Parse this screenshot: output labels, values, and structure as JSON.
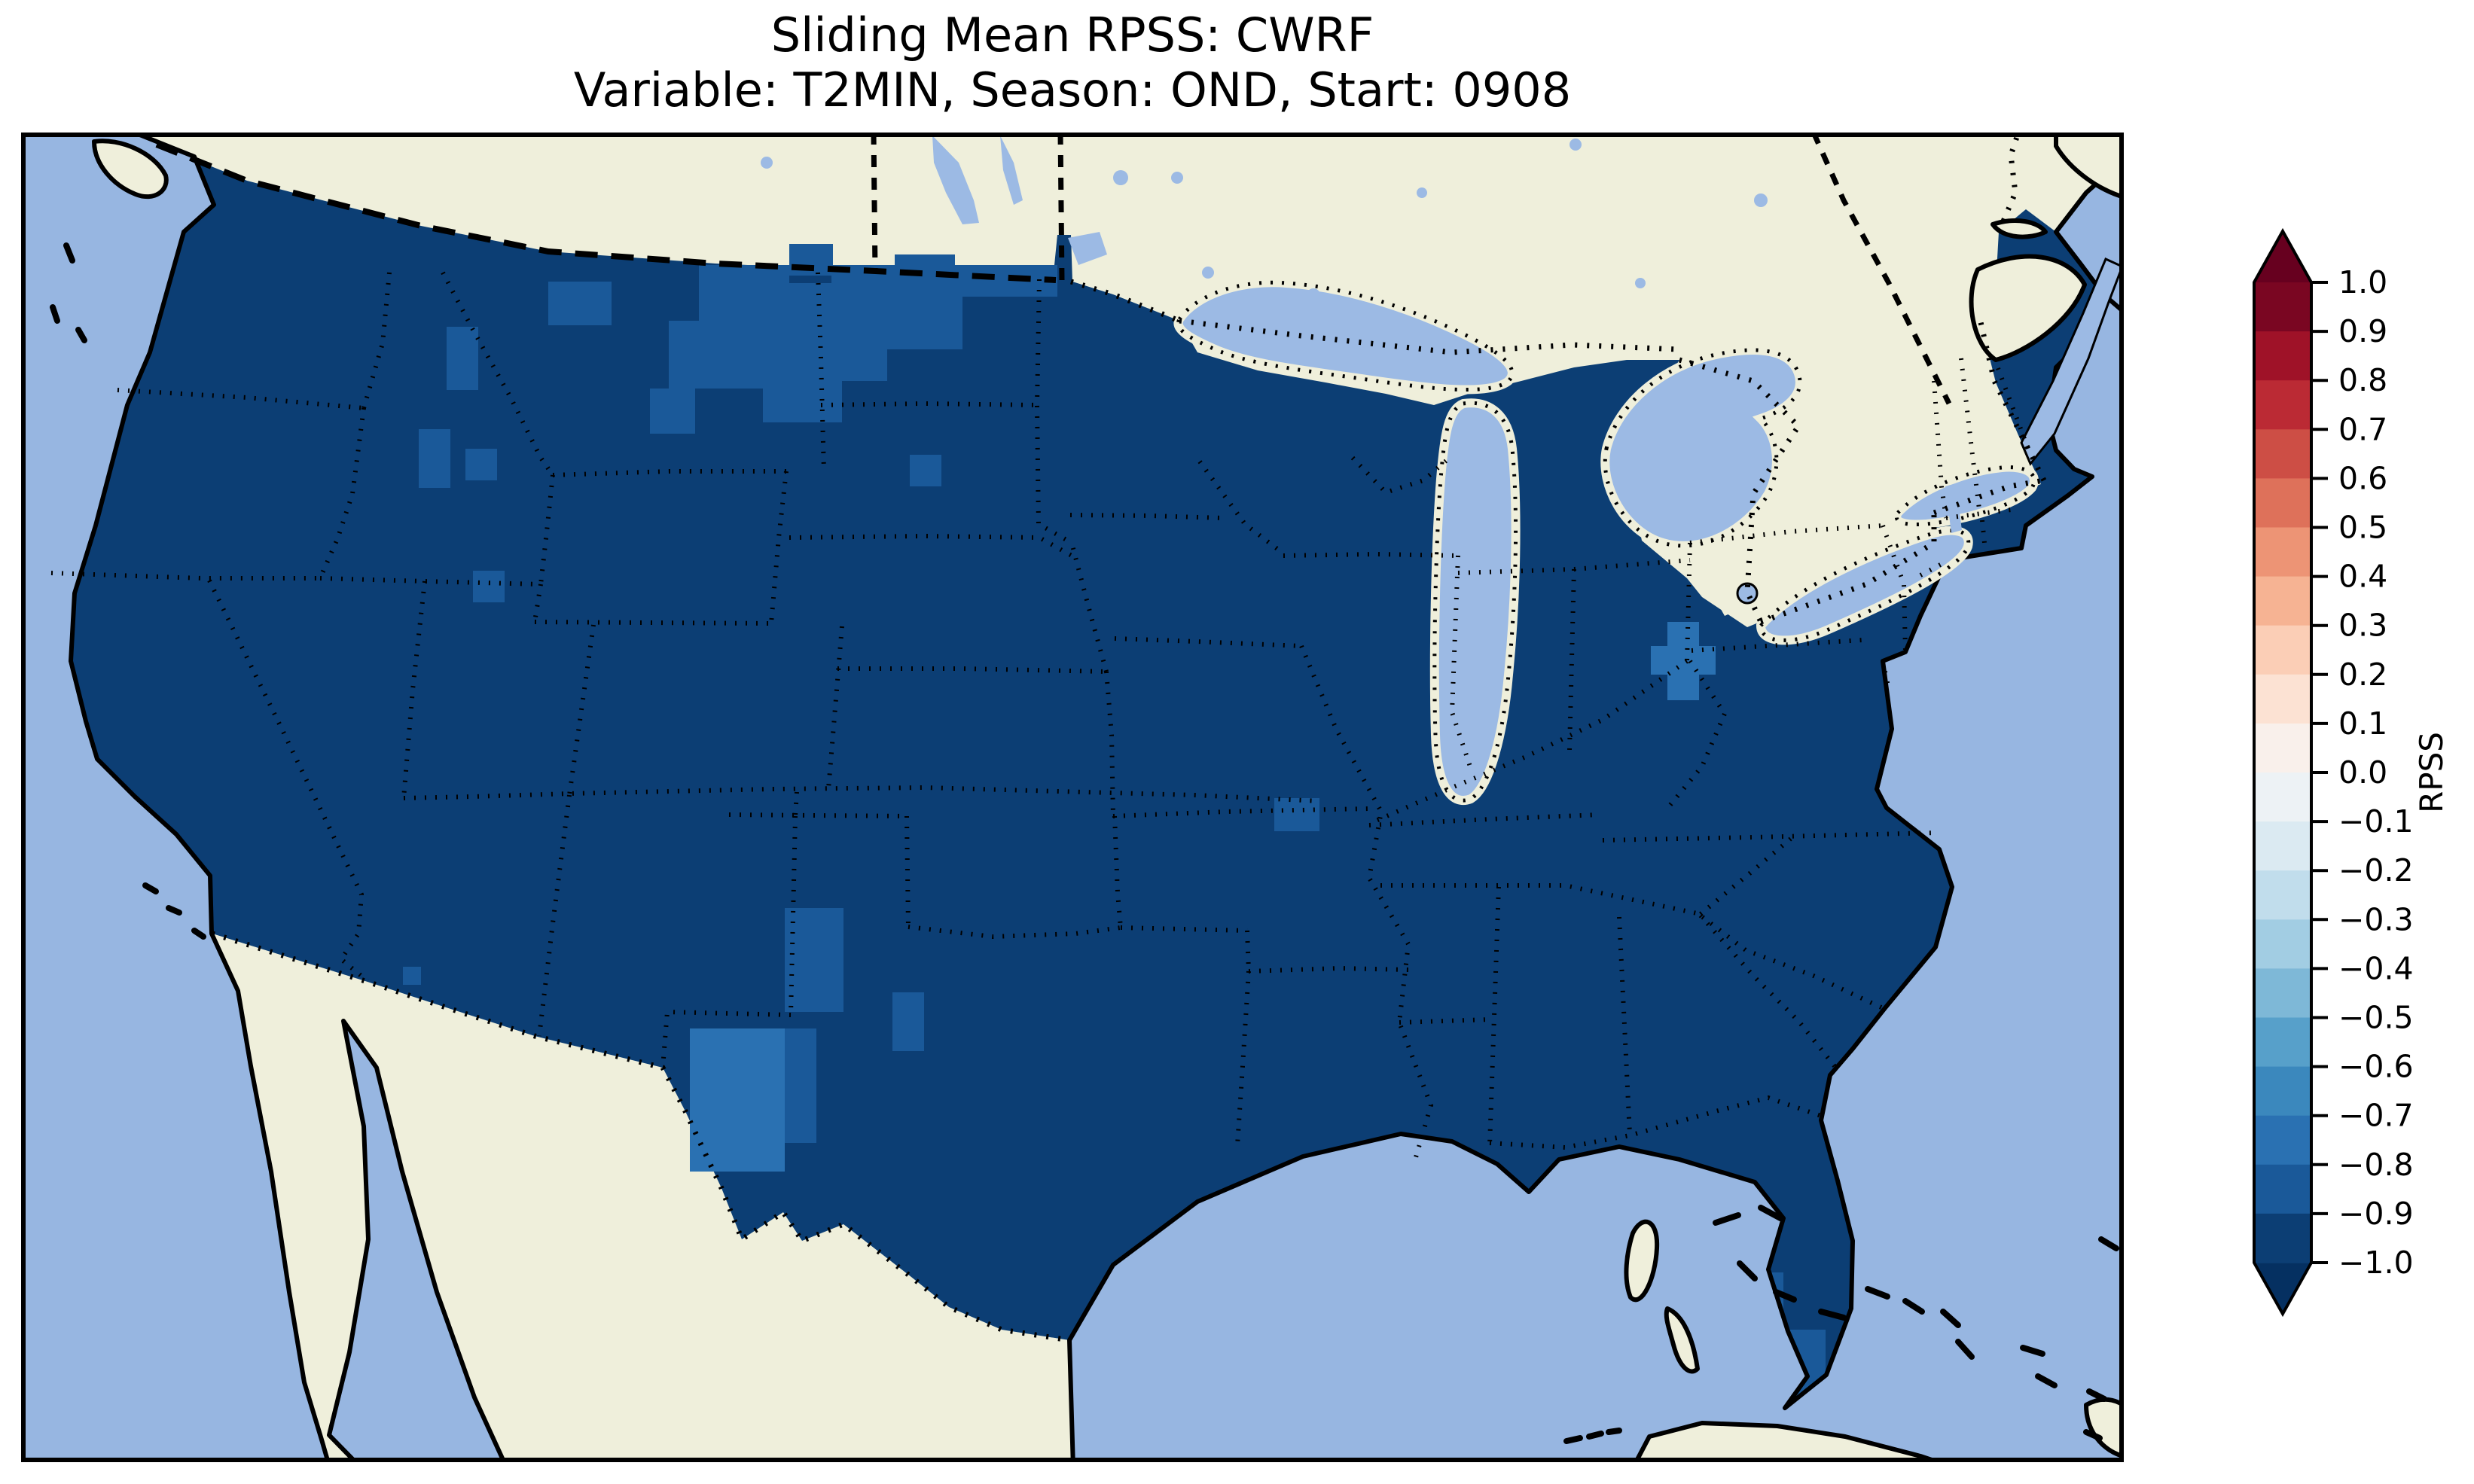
{
  "title": {
    "line1": "Sliding Mean RPSS: CWRF",
    "line2": "Variable: T2MIN, Season: OND, Start: 0908"
  },
  "colorbar": {
    "label": "RPSS",
    "tick_labels": [
      "1.0",
      "0.9",
      "0.8",
      "0.7",
      "0.6",
      "0.5",
      "0.4",
      "0.3",
      "0.2",
      "0.1",
      "0.0",
      "−0.1",
      "−0.2",
      "−0.3",
      "−0.4",
      "−0.5",
      "−0.6",
      "−0.7",
      "−0.8",
      "−0.9",
      "−1.0"
    ],
    "bin_colors_top_to_bottom": [
      "#7a0622",
      "#9f1228",
      "#bb2a34",
      "#cd4e45",
      "#de715a",
      "#ed9475",
      "#f6b393",
      "#fbceb6",
      "#fce2d3",
      "#f9f0eb",
      "#edf2f5",
      "#dbeaf2",
      "#c1ddec",
      "#a2cde3",
      "#7eb8d7",
      "#57a0ca",
      "#3b88bd",
      "#2a71b2",
      "#1a5999",
      "#0c3e74"
    ],
    "over_color": "#67001f",
    "under_color": "#053061",
    "outline_color": "#000000"
  },
  "map_colors": {
    "ocean": "#97b6e1",
    "land": "#efefdb",
    "lake": "#9cbae4",
    "coast": "#000000",
    "data_base": "#0c3e74",
    "data_mid": "#1a5999",
    "data_light": "#2a71b2",
    "border": "#000000",
    "frame": "#000000",
    "figure_bg": "#ffffff"
  },
  "chart_data": {
    "type": "heatmap",
    "title": "Sliding Mean RPSS: CWRF",
    "subtitle": "Variable: T2MIN, Season: OND, Start: 0908",
    "model": "CWRF",
    "variable": "T2MIN",
    "season": "OND",
    "start": "0908",
    "colorbar_label": "RPSS",
    "colormap": "RdBu_r, 20 discrete bins with extend arrows",
    "value_range": [
      -1.0,
      1.0
    ],
    "tick_step": 0.1,
    "region": "Contiguous United States gridded data over a North America basemap",
    "dominant_value_bin": [
      -1.0,
      -0.9
    ],
    "anomaly_regions": [
      {
        "area": "western Montana / Idaho Rockies",
        "value_bin": [
          -0.9,
          -0.8
        ]
      },
      {
        "area": "northern Washington border cells",
        "value_bin": [
          -0.9,
          -0.8
        ]
      },
      {
        "area": "North Dakota / Minnesota border strip",
        "value_bin": [
          -0.9,
          -0.8
        ]
      },
      {
        "area": "west Texas panhandle patch",
        "value_bin": [
          -0.8,
          -0.7
        ]
      },
      {
        "area": "southeast New Mexico cells",
        "value_bin": [
          -0.9,
          -0.8
        ]
      },
      {
        "area": "central Alabama cell",
        "value_bin": [
          -0.9,
          -0.8
        ]
      },
      {
        "area": "Maryland / Chesapeake cells",
        "value_bin": [
          -0.8,
          -0.7
        ]
      },
      {
        "area": "south Florida peninsula",
        "value_bin": [
          -0.9,
          -0.8
        ]
      },
      {
        "area": "Florida Keys isolated cells",
        "value_bin": [
          -0.8,
          -0.7
        ]
      }
    ],
    "basemap": {
      "ocean": "light periwinkle blue",
      "land_outside_data": "cream",
      "great_lakes": "light blue with dotted outlines",
      "state_borders": "dotted black",
      "national_borders": "dashed/dotted black",
      "coastlines": "solid black"
    },
    "legend_position": "vertical colorbar at right",
    "grid": false
  }
}
